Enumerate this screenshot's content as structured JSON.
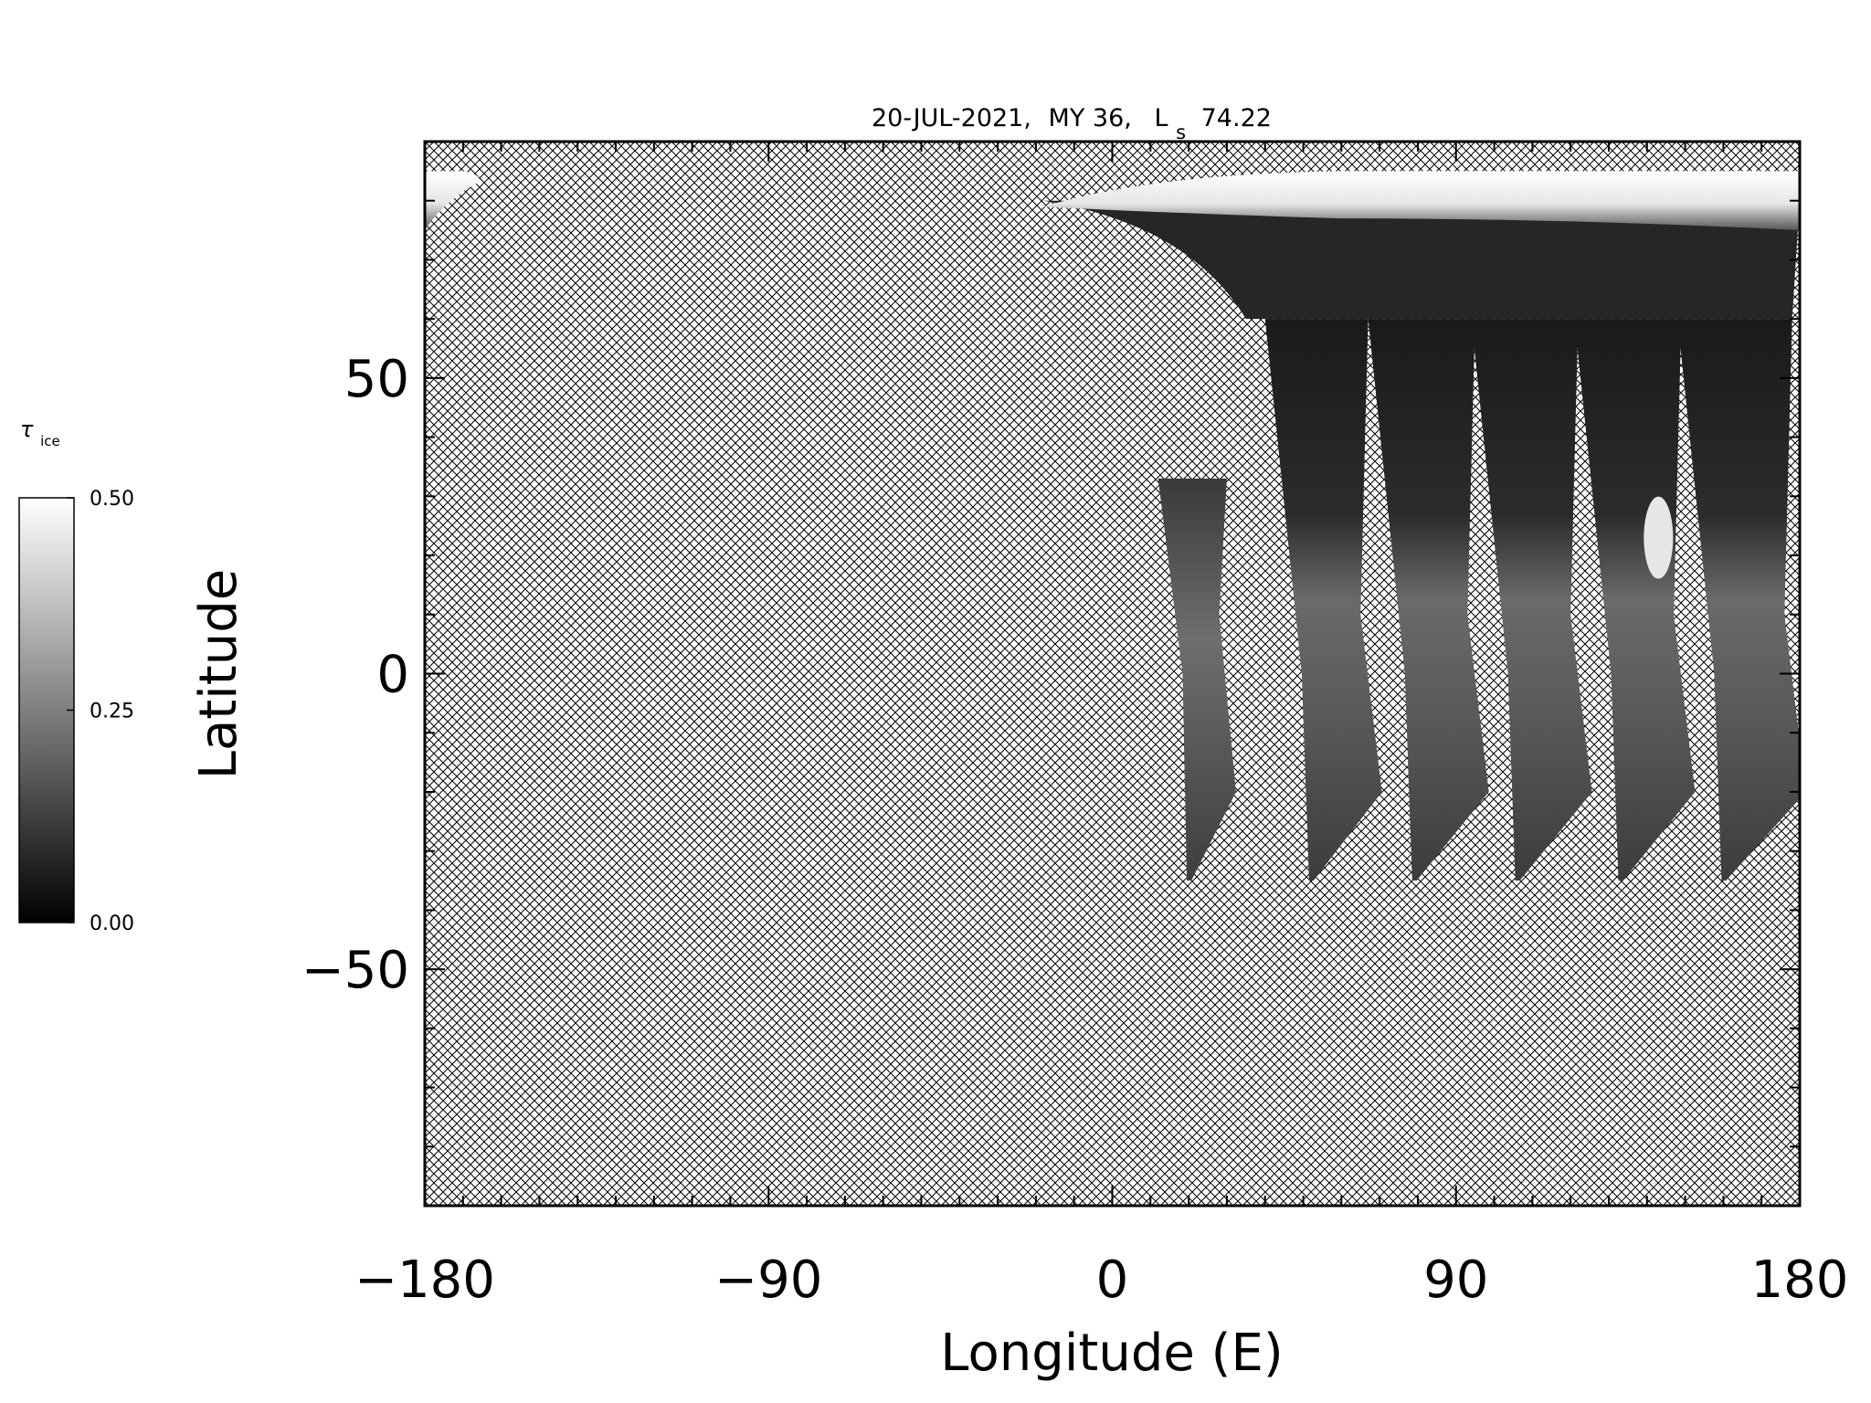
{
  "title": {
    "date": "20-JUL-2021,",
    "martian_year": "MY 36,",
    "ls_symbol": "L",
    "ls_subscript": "s",
    "ls_value": "74.22"
  },
  "colorbar": {
    "label_symbol": "τ",
    "label_subscript": "ice",
    "gradient": [
      "#000000",
      "#ffffff"
    ],
    "min": 0.0,
    "max": 0.5,
    "tick_labels": [
      "0.50",
      "0.25",
      "0.00"
    ]
  },
  "colors": {
    "no_data_hatch": "#000000",
    "background": "#ffffff",
    "frame": "#000000"
  },
  "chart_data": {
    "type": "heatmap",
    "xlabel": "Longitude (E)",
    "ylabel": "Latitude",
    "xlim": [
      -180,
      180
    ],
    "ylim": [
      -90,
      90
    ],
    "xticks": [
      -180,
      -90,
      0,
      90,
      180
    ],
    "xtick_labels": [
      "−180",
      "−90",
      "0",
      "90",
      "180"
    ],
    "yticks": [
      50,
      0,
      -50
    ],
    "ytick_labels": [
      "50",
      "0",
      "−50"
    ],
    "x_minor_step": 10,
    "y_minor_step": 10,
    "no_data_pattern": "cross-hatch",
    "north_cap": {
      "lon_range": [
        -18,
        180
      ],
      "lat_range": [
        78,
        85
      ],
      "tau_ice": 0.5
    },
    "swaths": [
      {
        "lon_left": 12,
        "lon_right": 30,
        "lat_top": 33,
        "lat_bottom": -35,
        "lon_shift": 8,
        "tau_ice_mean": 0.2
      },
      {
        "lon_left": 40,
        "lon_right": 67,
        "lat_top": 60,
        "lat_bottom": -35,
        "lon_shift": 12,
        "tau_ice_mean": 0.22
      },
      {
        "lon_left": 67,
        "lon_right": 95,
        "lat_top": 60,
        "lat_bottom": -35,
        "lon_shift": 12,
        "tau_ice_mean": 0.2
      },
      {
        "lon_left": 94,
        "lon_right": 122,
        "lat_top": 60,
        "lat_bottom": -35,
        "lon_shift": 12,
        "tau_ice_mean": 0.24
      },
      {
        "lon_left": 121,
        "lon_right": 149,
        "lat_top": 60,
        "lat_bottom": -35,
        "lon_shift": 12,
        "tau_ice_mean": 0.26
      },
      {
        "lon_left": 148,
        "lon_right": 178,
        "lat_top": 60,
        "lat_bottom": -35,
        "lon_shift": 12,
        "tau_ice_mean": 0.22
      }
    ],
    "ice_bright_spot": {
      "lon": 143,
      "lat": 23,
      "tau_ice": 0.45
    }
  }
}
